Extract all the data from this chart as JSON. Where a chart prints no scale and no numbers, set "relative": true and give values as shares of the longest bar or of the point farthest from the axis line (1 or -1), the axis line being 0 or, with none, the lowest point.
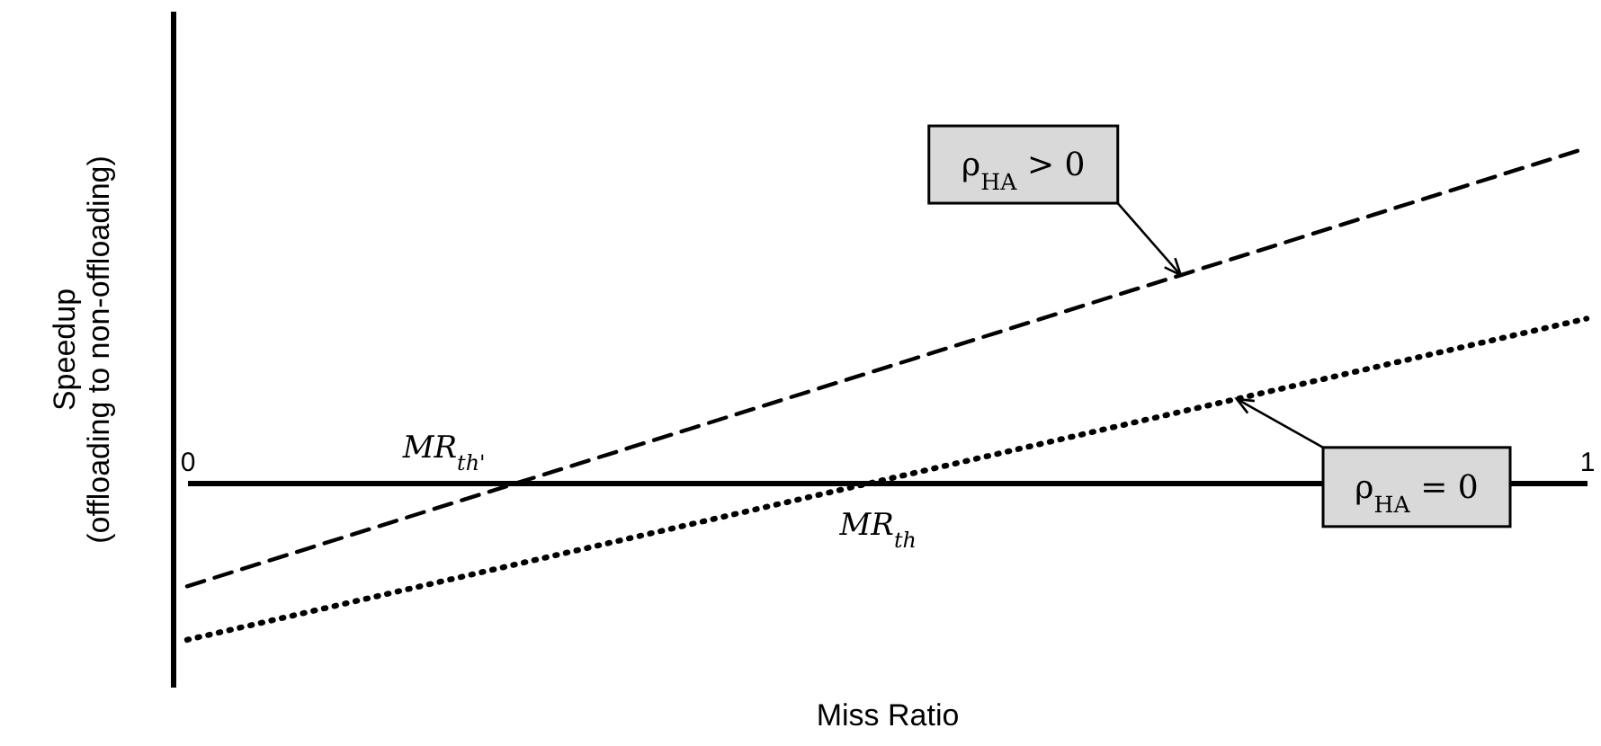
{
  "chart_data": {
    "type": "line",
    "relative": true,
    "xlabel": "Miss Ratio",
    "ylabel": "Speedup\n(offloading to non-offloading)",
    "xlim": [
      0,
      1
    ],
    "xticks": [
      0,
      1
    ],
    "x": [
      0,
      1
    ],
    "series": [
      {
        "name": "ρ$_{HA}$ > 0",
        "color": "#000000",
        "line_style": "dashed",
        "values": [
          -0.31,
          1.0
        ]
      },
      {
        "name": "ρ$_{HA}$ = 0",
        "color": "#000000",
        "line_style": "dotted",
        "values": [
          -0.47,
          0.49
        ]
      }
    ],
    "annotations": [
      {
        "text": "MR$_{th'}$",
        "x": 0.235,
        "y": 0
      },
      {
        "text": "MR$_{th}$",
        "x": 0.483,
        "y": 0
      }
    ]
  }
}
